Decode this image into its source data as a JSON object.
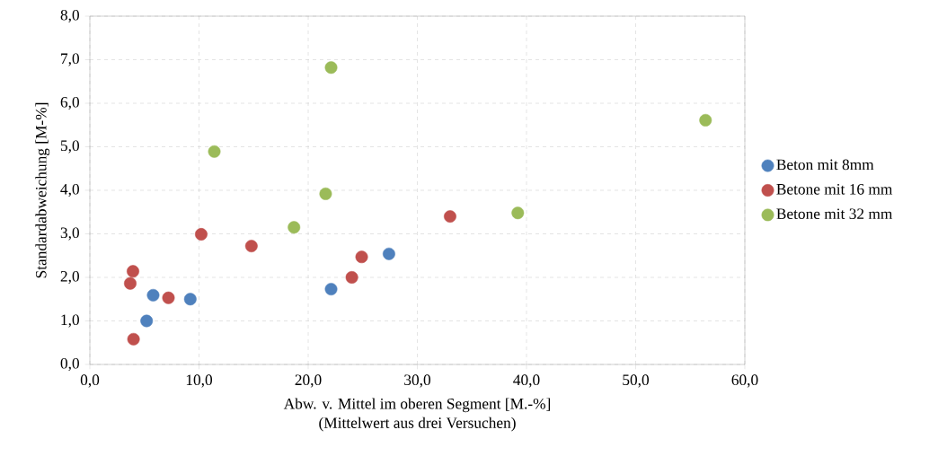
{
  "chart_data": {
    "type": "scatter",
    "xlabel": "Abw. v. Mittel im oberen Segment [M.-%]",
    "ylabel": "Standardabweichung [M-%]",
    "annotations": [
      "(Mittelwert aus drei Versuchen)"
    ],
    "series": [
      {
        "name": "Beton mit 8mm",
        "color": "#4f81bd",
        "x": [
          5.2,
          5.8,
          9.2,
          22.1,
          27.4
        ],
        "values": [
          1.0,
          1.59,
          1.5,
          1.73,
          2.54
        ]
      },
      {
        "name": "Betone mit 16 mm",
        "color": "#c0504d",
        "x": [
          3.95,
          3.7,
          4.0,
          7.2,
          10.2,
          14.8,
          24.0,
          24.9,
          33.0
        ],
        "values": [
          2.14,
          1.86,
          0.58,
          1.53,
          2.99,
          2.72,
          2.0,
          2.47,
          3.4
        ]
      },
      {
        "name": "Betone mit 32 mm",
        "color": "#9bbb59",
        "x": [
          11.4,
          18.7,
          21.6,
          22.1,
          39.2,
          56.4
        ],
        "values": [
          4.89,
          3.15,
          3.92,
          6.82,
          3.48,
          5.61
        ]
      }
    ],
    "xlim": [
      0,
      60
    ],
    "ylim": [
      0,
      8
    ],
    "xticks": [
      {
        "value": 0,
        "label": "0,0"
      },
      {
        "value": 10,
        "label": "10,0"
      },
      {
        "value": 20,
        "label": "20,0"
      },
      {
        "value": 30,
        "label": "30,0"
      },
      {
        "value": 40,
        "label": "40,0"
      },
      {
        "value": 50,
        "label": "50,0"
      },
      {
        "value": 60,
        "label": "60,0"
      }
    ],
    "yticks": [
      {
        "value": 0,
        "label": "0,0"
      },
      {
        "value": 1,
        "label": "1,0"
      },
      {
        "value": 2,
        "label": "2,0"
      },
      {
        "value": 3,
        "label": "3,0"
      },
      {
        "value": 4,
        "label": "4,0"
      },
      {
        "value": 5,
        "label": "5,0"
      },
      {
        "value": 6,
        "label": "6,0"
      },
      {
        "value": 7,
        "label": "7,0"
      },
      {
        "value": 8,
        "label": "8,0"
      }
    ],
    "grid": true,
    "legend": "right",
    "marker": "circle"
  }
}
